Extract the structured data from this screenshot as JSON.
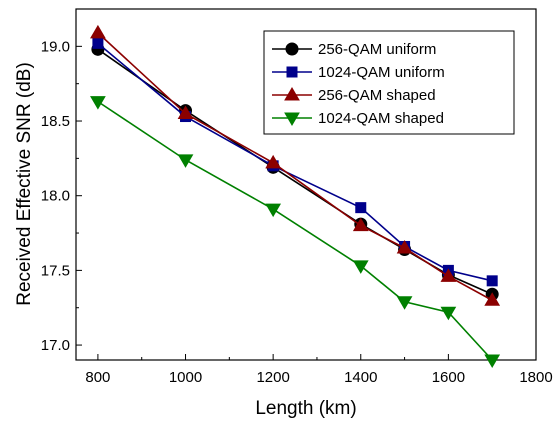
{
  "chart_data": {
    "type": "line",
    "title": "",
    "xlabel": "Length (km)",
    "ylabel": "Received Effective SNR (dB)",
    "xlim": [
      750,
      1800
    ],
    "ylim": [
      16.9,
      19.25
    ],
    "xticks": [
      800,
      1000,
      1200,
      1400,
      1600,
      1800
    ],
    "xtick_labels": [
      "800",
      "1000",
      "1200",
      "1400",
      "1600",
      "1800"
    ],
    "yticks": [
      17.0,
      17.5,
      18.0,
      18.5,
      19.0
    ],
    "ytick_labels": [
      "17.0",
      "17.5",
      "18.0",
      "18.5",
      "19.0"
    ],
    "grid": false,
    "legend_position": "top-right",
    "x": [
      800,
      1000,
      1200,
      1400,
      1500,
      1600,
      1700
    ],
    "series": [
      {
        "name": "256-QAM uniform",
        "marker": "circle",
        "color": "#000000",
        "values": [
          18.98,
          18.57,
          18.19,
          17.81,
          17.64,
          17.47,
          17.34
        ]
      },
      {
        "name": "1024-QAM uniform",
        "marker": "square",
        "color": "#00008b",
        "values": [
          19.02,
          18.53,
          18.2,
          17.92,
          17.66,
          17.5,
          17.43
        ]
      },
      {
        "name": "256-QAM shaped",
        "marker": "triangle-up",
        "color": "#8b0000",
        "values": [
          19.09,
          18.55,
          18.22,
          17.8,
          17.65,
          17.46,
          17.3
        ]
      },
      {
        "name": "1024-QAM shaped",
        "marker": "triangle-down",
        "color": "#008000",
        "values": [
          18.63,
          18.24,
          17.91,
          17.53,
          17.29,
          17.22,
          16.9
        ]
      }
    ]
  }
}
